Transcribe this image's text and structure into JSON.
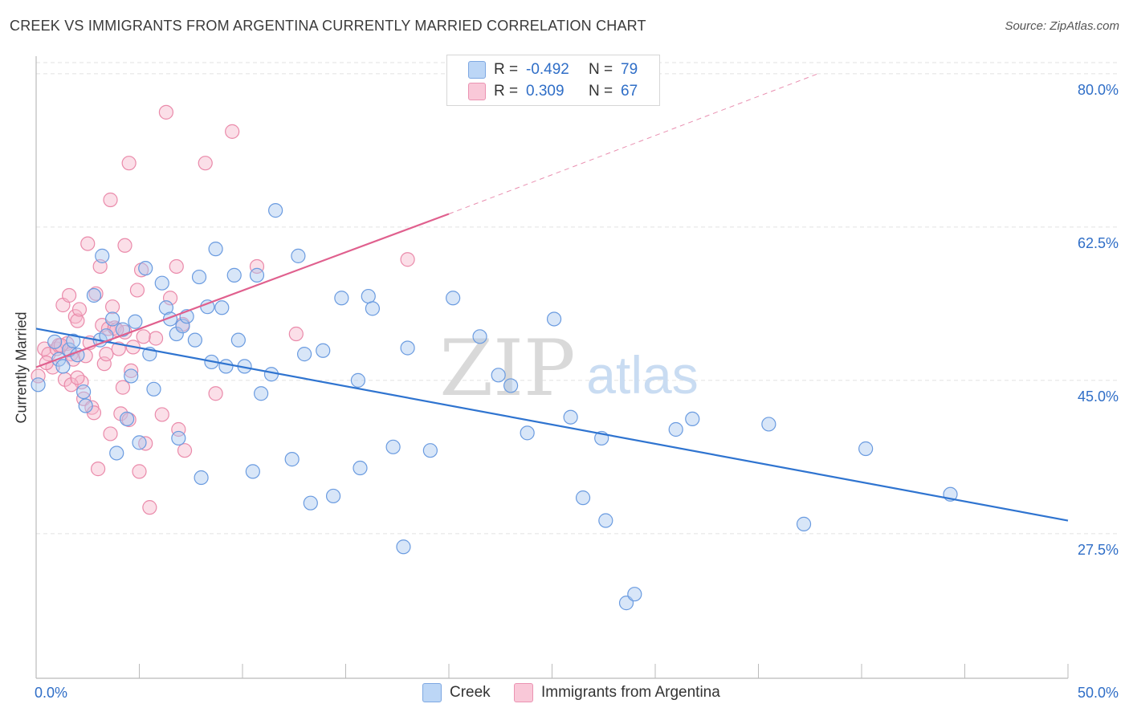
{
  "title": "CREEK VS IMMIGRANTS FROM ARGENTINA CURRENTLY MARRIED CORRELATION CHART",
  "source": "Source: ZipAtlas.com",
  "watermark": {
    "zip": "ZIP",
    "atlas": "atlas"
  },
  "legend": {
    "rows": [
      {
        "r_label": "R =",
        "r_value": "-0.492",
        "n_label": "N =",
        "n_value": "79"
      },
      {
        "r_label": "R =",
        "r_value": "0.309",
        "n_label": "N =",
        "n_value": "67"
      }
    ]
  },
  "bottom_legend": {
    "creek": "Creek",
    "argentina": "Immigrants from Argentina"
  },
  "colors": {
    "creek_fill": "#a8c8f0",
    "creek_stroke": "#6a9be0",
    "creek_line": "#2f74d0",
    "arg_fill": "#f7b8cc",
    "arg_stroke": "#ea8aaa",
    "arg_line": "#e0608e",
    "axis_text": "#2f6ec7",
    "grid": "#e2e2e2"
  },
  "chart_data": {
    "type": "scatter",
    "title": "CREEK VS IMMIGRANTS FROM ARGENTINA CURRENTLY MARRIED CORRELATION CHART",
    "ylabel": "Currently Married",
    "xlabel": "",
    "xlim": [
      0,
      50
    ],
    "ylim": [
      11,
      82
    ],
    "x_tick_labels": [
      "0.0%",
      "50.0%"
    ],
    "y_ticks": [
      27.5,
      45.0,
      62.5,
      80.0
    ],
    "y_tick_labels": [
      "27.5%",
      "45.0%",
      "62.5%",
      "80.0%"
    ],
    "grid": true,
    "series": [
      {
        "name": "Creek",
        "r": -0.492,
        "n": 79,
        "trend": {
          "x0": 0,
          "y0": 50.9,
          "x1": 50,
          "y1": 29.0
        },
        "points": [
          [
            0.1,
            44.5
          ],
          [
            0.9,
            49.4
          ],
          [
            1.1,
            47.4
          ],
          [
            1.3,
            46.6
          ],
          [
            1.6,
            48.5
          ],
          [
            1.8,
            49.5
          ],
          [
            2.0,
            47.9
          ],
          [
            2.3,
            43.7
          ],
          [
            2.4,
            42.1
          ],
          [
            2.8,
            54.7
          ],
          [
            3.1,
            49.6
          ],
          [
            3.2,
            59.2
          ],
          [
            3.4,
            50.1
          ],
          [
            3.7,
            52.0
          ],
          [
            3.9,
            36.7
          ],
          [
            4.2,
            50.8
          ],
          [
            4.4,
            40.6
          ],
          [
            4.6,
            45.5
          ],
          [
            4.8,
            51.7
          ],
          [
            5.0,
            37.9
          ],
          [
            5.3,
            57.8
          ],
          [
            5.5,
            48.0
          ],
          [
            5.7,
            44.0
          ],
          [
            6.1,
            56.1
          ],
          [
            6.3,
            53.3
          ],
          [
            6.5,
            52.0
          ],
          [
            6.8,
            50.3
          ],
          [
            6.9,
            38.4
          ],
          [
            7.1,
            51.2
          ],
          [
            7.3,
            52.3
          ],
          [
            7.7,
            49.6
          ],
          [
            7.9,
            56.8
          ],
          [
            8.0,
            33.9
          ],
          [
            8.3,
            53.4
          ],
          [
            8.5,
            47.1
          ],
          [
            8.7,
            60.0
          ],
          [
            9.0,
            53.3
          ],
          [
            9.2,
            46.6
          ],
          [
            9.6,
            57.0
          ],
          [
            9.8,
            49.6
          ],
          [
            10.1,
            46.6
          ],
          [
            10.5,
            34.6
          ],
          [
            10.7,
            57.0
          ],
          [
            10.9,
            43.5
          ],
          [
            11.4,
            45.7
          ],
          [
            11.6,
            64.4
          ],
          [
            12.4,
            36.0
          ],
          [
            12.7,
            59.2
          ],
          [
            13.0,
            48.0
          ],
          [
            13.3,
            31.0
          ],
          [
            13.9,
            48.4
          ],
          [
            14.4,
            31.8
          ],
          [
            14.8,
            54.4
          ],
          [
            15.6,
            45.0
          ],
          [
            15.7,
            35.0
          ],
          [
            16.1,
            54.6
          ],
          [
            16.3,
            53.2
          ],
          [
            17.3,
            37.4
          ],
          [
            17.8,
            26.0
          ],
          [
            18.0,
            48.7
          ],
          [
            19.1,
            37.0
          ],
          [
            20.2,
            54.4
          ],
          [
            21.5,
            50.0
          ],
          [
            22.4,
            45.6
          ],
          [
            23.0,
            44.4
          ],
          [
            23.8,
            39.0
          ],
          [
            25.1,
            52.0
          ],
          [
            25.9,
            40.8
          ],
          [
            26.5,
            31.6
          ],
          [
            27.4,
            38.4
          ],
          [
            27.6,
            29.0
          ],
          [
            28.6,
            19.6
          ],
          [
            29.0,
            20.6
          ],
          [
            31.0,
            39.4
          ],
          [
            31.8,
            40.6
          ],
          [
            35.5,
            40.0
          ],
          [
            37.2,
            28.6
          ],
          [
            40.2,
            37.2
          ],
          [
            44.3,
            32.0
          ]
        ]
      },
      {
        "name": "Immigrants from Argentina",
        "r": 0.309,
        "n": 67,
        "trend": {
          "x0": 0,
          "y0": 46.5,
          "x1": 20,
          "y1": 64.0
        },
        "trend_extended": {
          "x0": 20,
          "y0": 64.0,
          "x1": 38,
          "y1": 80.1
        },
        "points": [
          [
            0.1,
            45.5
          ],
          [
            0.4,
            48.6
          ],
          [
            0.6,
            48.0
          ],
          [
            0.8,
            46.5
          ],
          [
            1.0,
            48.6
          ],
          [
            1.1,
            49.0
          ],
          [
            1.3,
            53.6
          ],
          [
            1.4,
            45.1
          ],
          [
            1.5,
            49.2
          ],
          [
            1.6,
            54.7
          ],
          [
            1.7,
            48.0
          ],
          [
            1.8,
            47.4
          ],
          [
            1.9,
            52.3
          ],
          [
            2.0,
            51.8
          ],
          [
            2.1,
            53.1
          ],
          [
            2.2,
            44.8
          ],
          [
            2.3,
            42.9
          ],
          [
            2.4,
            47.8
          ],
          [
            2.5,
            60.6
          ],
          [
            2.6,
            49.3
          ],
          [
            2.7,
            41.9
          ],
          [
            2.8,
            41.3
          ],
          [
            2.9,
            54.9
          ],
          [
            3.0,
            34.9
          ],
          [
            3.1,
            58.0
          ],
          [
            3.2,
            51.3
          ],
          [
            3.3,
            46.9
          ],
          [
            3.4,
            48.0
          ],
          [
            3.5,
            50.9
          ],
          [
            3.6,
            38.9
          ],
          [
            3.7,
            53.4
          ],
          [
            3.8,
            51.0
          ],
          [
            4.0,
            48.6
          ],
          [
            4.1,
            41.2
          ],
          [
            4.2,
            44.2
          ],
          [
            4.3,
            50.5
          ],
          [
            4.5,
            40.5
          ],
          [
            4.7,
            48.8
          ],
          [
            4.9,
            55.3
          ],
          [
            5.0,
            34.6
          ],
          [
            5.1,
            57.6
          ],
          [
            5.3,
            37.8
          ],
          [
            5.5,
            30.5
          ],
          [
            5.8,
            49.8
          ],
          [
            6.1,
            41.1
          ],
          [
            6.3,
            75.6
          ],
          [
            6.5,
            54.4
          ],
          [
            6.8,
            58.0
          ],
          [
            6.9,
            39.4
          ],
          [
            7.1,
            51.4
          ],
          [
            7.2,
            37.0
          ],
          [
            8.2,
            69.8
          ],
          [
            8.7,
            43.5
          ],
          [
            9.5,
            73.4
          ],
          [
            10.7,
            58.0
          ],
          [
            12.6,
            50.3
          ],
          [
            18.0,
            58.8
          ],
          [
            4.5,
            69.8
          ],
          [
            3.6,
            65.6
          ],
          [
            4.3,
            60.4
          ],
          [
            5.2,
            50.0
          ],
          [
            1.7,
            44.5
          ],
          [
            0.5,
            47.0
          ],
          [
            2.0,
            45.3
          ],
          [
            3.9,
            50.8
          ],
          [
            4.6,
            46.1
          ],
          [
            1.2,
            49.0
          ]
        ]
      }
    ]
  }
}
